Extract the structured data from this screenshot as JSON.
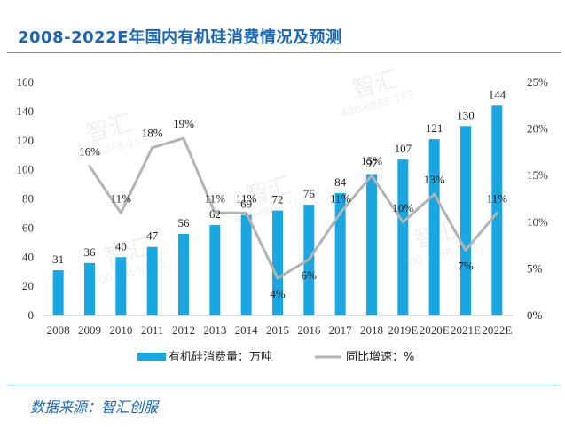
{
  "title": "2008-2022E年国内有机硅消费情况及预测",
  "source": "数据来源：智汇创服",
  "watermark": [
    "智汇",
    "400-6868-163"
  ],
  "colors": {
    "bar": "#1aa6e0",
    "line": "#b3b3b3",
    "title": "#1a66b3",
    "rule": "#4aa8dc"
  },
  "chart_data": {
    "type": "bar",
    "categories": [
      "2008",
      "2009",
      "2010",
      "2011",
      "2012",
      "2013",
      "2014",
      "2015",
      "2016",
      "2017",
      "2018",
      "2019E",
      "2020E",
      "2021E",
      "2022E"
    ],
    "series": [
      {
        "name": "有机硅消费量：万吨",
        "type": "bar",
        "axis": "left",
        "values": [
          31,
          36,
          40,
          47,
          56,
          62,
          69,
          72,
          76,
          84,
          97,
          107,
          121,
          130,
          144
        ],
        "labels": [
          "31",
          "36",
          "40",
          "47",
          "56",
          "62",
          "69",
          "72",
          "76",
          "84",
          "97",
          "107",
          "121",
          "130",
          "144"
        ]
      },
      {
        "name": "同比增速：%",
        "type": "line",
        "axis": "right",
        "values": [
          null,
          16,
          11,
          18,
          19,
          11,
          11,
          4,
          6,
          11,
          15,
          10,
          13,
          7,
          11
        ],
        "labels": [
          "",
          "16%",
          "11%",
          "18%",
          "19%",
          "11%",
          "11%",
          "4%",
          "6%",
          "11%",
          "15%",
          "10%",
          "13%",
          "7%",
          "11%"
        ]
      }
    ],
    "y_left": {
      "min": 0,
      "max": 160,
      "ticks": [
        "0",
        "20",
        "40",
        "60",
        "80",
        "100",
        "120",
        "140",
        "160"
      ]
    },
    "y_right": {
      "min": 0,
      "max": 25,
      "ticks": [
        "0%",
        "5%",
        "10%",
        "15%",
        "20%",
        "25%"
      ]
    },
    "grid": false,
    "legend_position": "bottom"
  }
}
